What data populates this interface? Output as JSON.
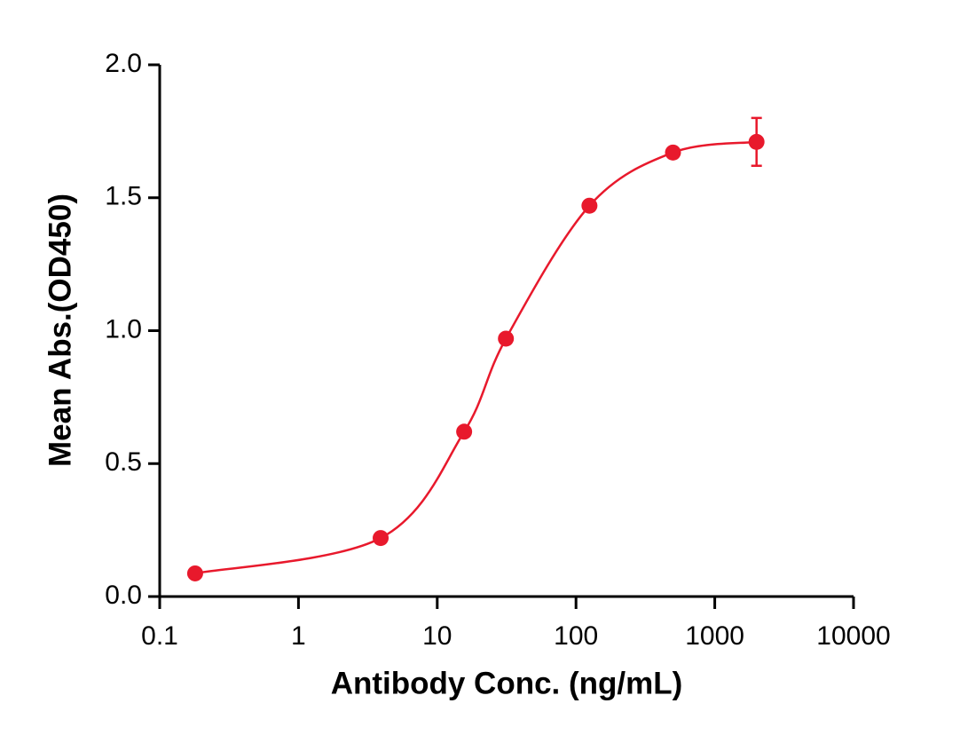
{
  "chart_data": {
    "type": "scatter",
    "xlabel": "Antibody Conc. (ng/mL)",
    "ylabel": "Mean Abs.(OD450)",
    "xscale": "log",
    "xlim": [
      0.1,
      10000
    ],
    "xticks": [
      0.1,
      1,
      10,
      100,
      1000,
      10000
    ],
    "ylim": [
      0,
      2.0
    ],
    "yticks": [
      {
        "value": 0,
        "label": "0.0"
      },
      {
        "value": 0.5,
        "label": "0.5"
      },
      {
        "value": 1.0,
        "label": "1.0"
      },
      {
        "value": 1.5,
        "label": "1.5"
      },
      {
        "value": 2.0,
        "label": "2.0"
      }
    ],
    "series": [
      {
        "color": "#e8192c",
        "x": [
          0.18,
          3.91,
          15.63,
          31.25,
          125,
          500,
          2000
        ],
        "values": [
          0.087,
          0.22,
          0.62,
          0.97,
          1.47,
          1.67,
          1.71
        ],
        "errors": [
          null,
          null,
          null,
          null,
          null,
          null,
          0.09
        ]
      }
    ]
  }
}
